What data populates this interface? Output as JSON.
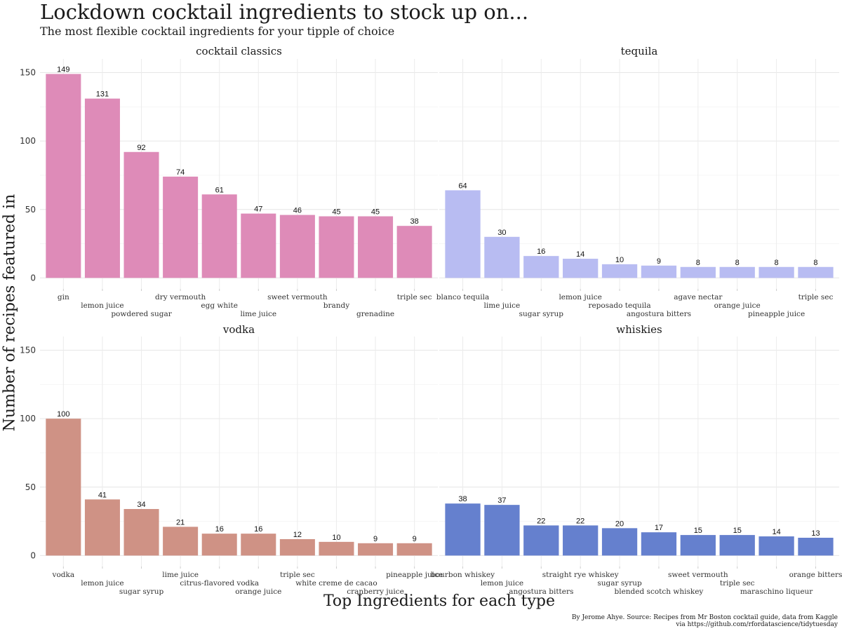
{
  "title": "Lockdown cocktail ingredients to stock up on...",
  "subtitle": "The most flexible cocktail ingredients for your tipple of choice",
  "caption": {
    "line1": "By Jerome Ahye. Source: Recipes from Mr Boston cocktail guide, data from Kaggle",
    "line2": "via https://github.com/rfordatascience/tidytuesday"
  },
  "chart_data": {
    "type": "bar",
    "xlabel": "Top Ingredients for each type",
    "ylabel": "Number of recipes featured in",
    "ylim": [
      0,
      150
    ],
    "yticks": [
      0,
      50,
      100,
      150
    ],
    "grid": true,
    "facets": [
      {
        "name": "cocktail classics",
        "color": "#de8bb8",
        "categories": [
          "gin",
          "lemon juice",
          "powdered sugar",
          "dry vermouth",
          "egg white",
          "lime juice",
          "sweet vermouth",
          "brandy",
          "grenadine",
          "triple sec"
        ],
        "values": [
          149,
          131,
          92,
          74,
          61,
          47,
          46,
          45,
          45,
          38
        ]
      },
      {
        "name": "tequila",
        "color": "#b8bcf2",
        "categories": [
          "blanco tequila",
          "lime juice",
          "sugar syrup",
          "lemon juice",
          "reposado tequila",
          "angostura bitters",
          "agave nectar",
          "orange juice",
          "pineapple juice",
          "triple sec"
        ],
        "values": [
          64,
          30,
          16,
          14,
          10,
          9,
          8,
          8,
          8,
          8
        ]
      },
      {
        "name": "vodka",
        "color": "#cf9285",
        "categories": [
          "vodka",
          "lemon juice",
          "sugar syrup",
          "lime juice",
          "citrus-flavored vodka",
          "orange juice",
          "triple sec",
          "white creme de cacao",
          "cranberry juice",
          "pineapple juice"
        ],
        "values": [
          100,
          41,
          34,
          21,
          16,
          16,
          12,
          10,
          9,
          9
        ]
      },
      {
        "name": "whiskies",
        "color": "#6580ce",
        "categories": [
          "bourbon whiskey",
          "lemon juice",
          "angostura bitters",
          "straight rye whiskey",
          "sugar syrup",
          "blended scotch whiskey",
          "sweet vermouth",
          "triple sec",
          "maraschino liqueur",
          "orange bitters"
        ],
        "values": [
          38,
          37,
          22,
          22,
          20,
          17,
          15,
          15,
          14,
          13
        ]
      }
    ]
  }
}
